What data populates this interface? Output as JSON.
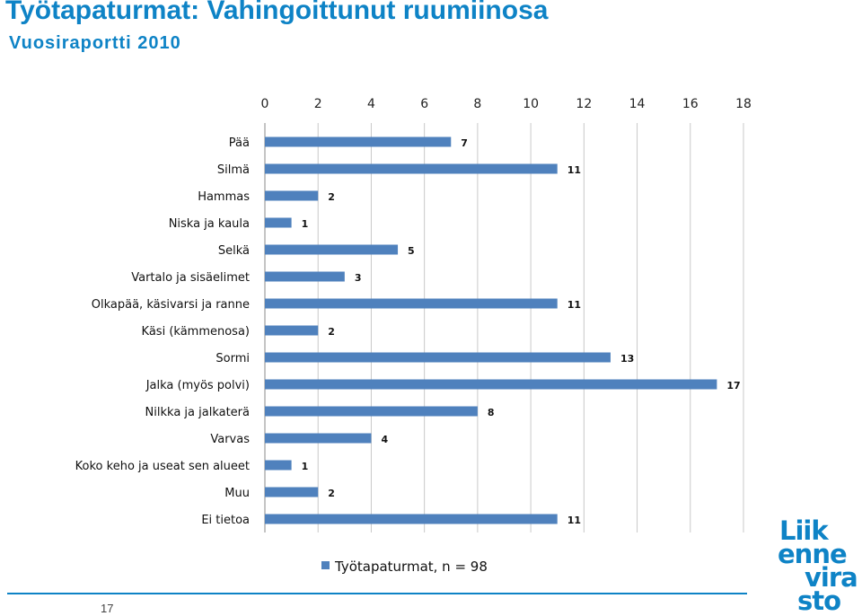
{
  "header": {
    "title": "Työtapaturmat: Vahingoittunut ruumiinosa",
    "subtitle": "Vuosiraportti 2010"
  },
  "footer": {
    "page_number": "17"
  },
  "logo": {
    "lines": [
      "Liik",
      "enne",
      "vira",
      "sto"
    ]
  },
  "colors": {
    "bar": "#4f81bd",
    "accent": "#0e83c6",
    "grid": "#c8c8c8"
  },
  "chart_data": {
    "type": "bar",
    "orientation": "horizontal",
    "categories": [
      "Pää",
      "Silmä",
      "Hammas",
      "Niska ja kaula",
      "Selkä",
      "Vartalo ja sisäelimet",
      "Olkapää, käsivarsi ja ranne",
      "Käsi (kämmenosa)",
      "Sormi",
      "Jalka (myös polvi)",
      "Nilkka ja jalkaterä",
      "Varvas",
      "Koko keho ja useat sen alueet",
      "Muu",
      "Ei tietoa"
    ],
    "series": [
      {
        "name": "Työtapaturmat, n = 98",
        "values": [
          7,
          11,
          2,
          1,
          5,
          3,
          11,
          2,
          13,
          17,
          8,
          4,
          1,
          2,
          11
        ]
      }
    ],
    "xlim": [
      0,
      18
    ],
    "xticks": [
      0,
      2,
      4,
      6,
      8,
      10,
      12,
      14,
      16,
      18
    ],
    "axis_position": "top",
    "grid": true,
    "legend_position": "bottom"
  }
}
